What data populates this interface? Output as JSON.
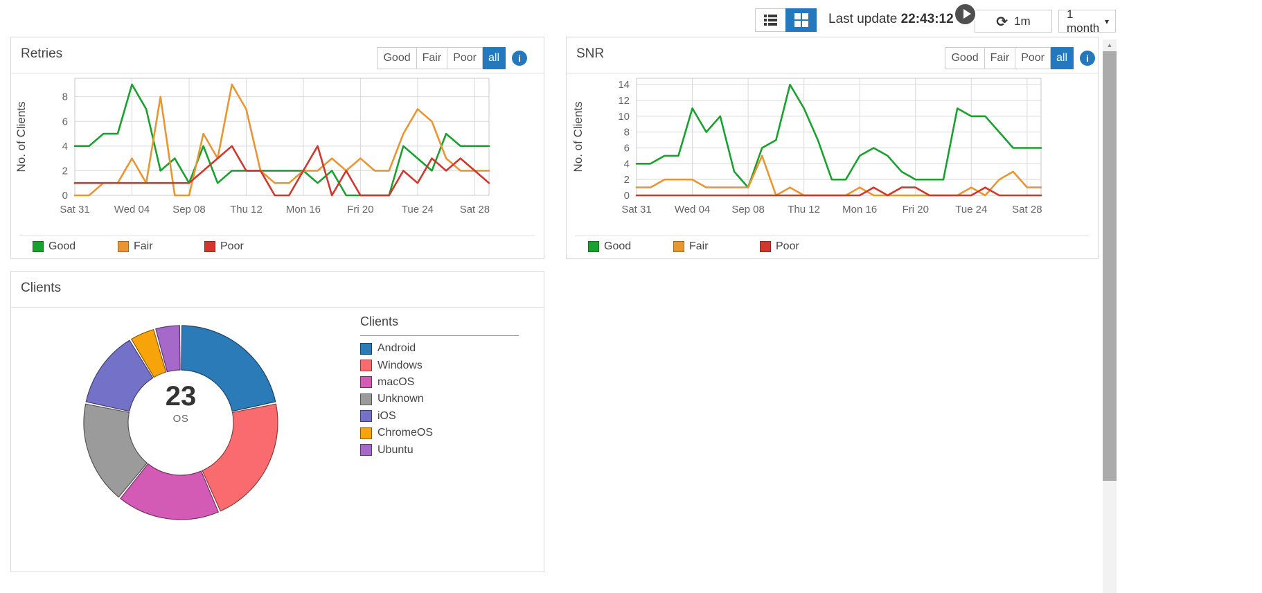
{
  "topbar": {
    "last_update_label": "Last update",
    "last_update_time": "22:43:12",
    "refresh_interval": "1m",
    "time_range": "1 month"
  },
  "icons": {
    "refresh": "⟳",
    "caret_down": "▾",
    "scroll_up_arrow": "▲",
    "info": "i"
  },
  "accent_color": "#2478bd",
  "filter_buttons": [
    "Good",
    "Fair",
    "Poor",
    "all"
  ],
  "active_filter": "all",
  "panels": {
    "retries": {
      "title": "Retries"
    },
    "snr": {
      "title": "SNR"
    },
    "clients": {
      "title": "Clients",
      "legend_title": "Clients",
      "center_value": "23",
      "center_label": "OS"
    }
  },
  "chart_data": [
    {
      "id": "retries",
      "type": "line",
      "title": "Retries",
      "ylabel": "No. of Clients",
      "ylim": [
        0,
        9.5
      ],
      "yticks": [
        0,
        2,
        4,
        6,
        8
      ],
      "x_tick_labels": [
        "Sat 31",
        "Wed 04",
        "Sep 08",
        "Thu 12",
        "Mon 16",
        "Fri 20",
        "Tue 24",
        "Sat 28"
      ],
      "x_tick_indices": [
        0,
        4,
        8,
        12,
        16,
        20,
        24,
        28
      ],
      "grid": true,
      "legend_position": "bottom",
      "series": [
        {
          "name": "Good",
          "color": "#18a12c",
          "values": [
            4,
            4,
            5,
            5,
            9,
            7,
            2,
            3,
            1,
            4,
            1,
            2,
            2,
            2,
            2,
            2,
            2,
            1,
            2,
            0,
            0,
            0,
            0,
            4,
            3,
            2,
            5,
            4,
            4,
            4
          ]
        },
        {
          "name": "Fair",
          "color": "#eb9531",
          "values": [
            0,
            0,
            1,
            1,
            3,
            1,
            8,
            0,
            0,
            5,
            3,
            9,
            7,
            2,
            1,
            1,
            2,
            2,
            3,
            2,
            3,
            2,
            2,
            5,
            7,
            6,
            3,
            2,
            2,
            2
          ]
        },
        {
          "name": "Poor",
          "color": "#d2362c",
          "values": [
            1,
            1,
            1,
            1,
            1,
            1,
            1,
            1,
            1,
            2,
            3,
            4,
            2,
            2,
            0,
            0,
            2,
            4,
            0,
            2,
            0,
            0,
            0,
            2,
            1,
            3,
            2,
            3,
            2,
            1
          ]
        }
      ]
    },
    {
      "id": "snr",
      "type": "line",
      "title": "SNR",
      "ylabel": "No. of Clients",
      "ylim": [
        0,
        14.8
      ],
      "yticks": [
        0,
        2,
        4,
        6,
        8,
        10,
        12,
        14
      ],
      "x_tick_labels": [
        "Sat 31",
        "Wed 04",
        "Sep 08",
        "Thu 12",
        "Mon 16",
        "Fri 20",
        "Tue 24",
        "Sat 28"
      ],
      "x_tick_indices": [
        0,
        4,
        8,
        12,
        16,
        20,
        24,
        28
      ],
      "grid": true,
      "legend_position": "bottom",
      "series": [
        {
          "name": "Good",
          "color": "#18a12c",
          "values": [
            4,
            4,
            5,
            5,
            11,
            8,
            10,
            3,
            1,
            6,
            7,
            14,
            11,
            7,
            2,
            2,
            5,
            6,
            5,
            3,
            2,
            2,
            2,
            11,
            10,
            10,
            8,
            6,
            6,
            6
          ]
        },
        {
          "name": "Fair",
          "color": "#eb9531",
          "values": [
            1,
            1,
            2,
            2,
            2,
            1,
            1,
            1,
            1,
            5,
            0,
            1,
            0,
            0,
            0,
            0,
            1,
            0,
            0,
            0,
            0,
            0,
            0,
            0,
            1,
            0,
            2,
            3,
            1,
            1
          ]
        },
        {
          "name": "Poor",
          "color": "#d2362c",
          "values": [
            0,
            0,
            0,
            0,
            0,
            0,
            0,
            0,
            0,
            0,
            0,
            0,
            0,
            0,
            0,
            0,
            0,
            1,
            0,
            1,
            1,
            0,
            0,
            0,
            0,
            1,
            0,
            0,
            0,
            0
          ]
        }
      ]
    },
    {
      "id": "clients-os",
      "type": "pie",
      "subtype": "donut",
      "title": "Clients",
      "center_value": "23",
      "center_label": "OS",
      "total": 23,
      "slices": [
        {
          "label": "Android",
          "value": 5,
          "color": "#2b7bb9"
        },
        {
          "label": "Windows",
          "value": 5,
          "color": "#f96b6e"
        },
        {
          "label": "macOS",
          "value": 4,
          "color": "#d35ab5"
        },
        {
          "label": "Unknown",
          "value": 4,
          "color": "#9b9b9b"
        },
        {
          "label": "iOS",
          "value": 3,
          "color": "#7471c9"
        },
        {
          "label": "ChromeOS",
          "value": 1,
          "color": "#f7a40a"
        },
        {
          "label": "Ubuntu",
          "value": 1,
          "color": "#a668c9"
        }
      ]
    }
  ]
}
